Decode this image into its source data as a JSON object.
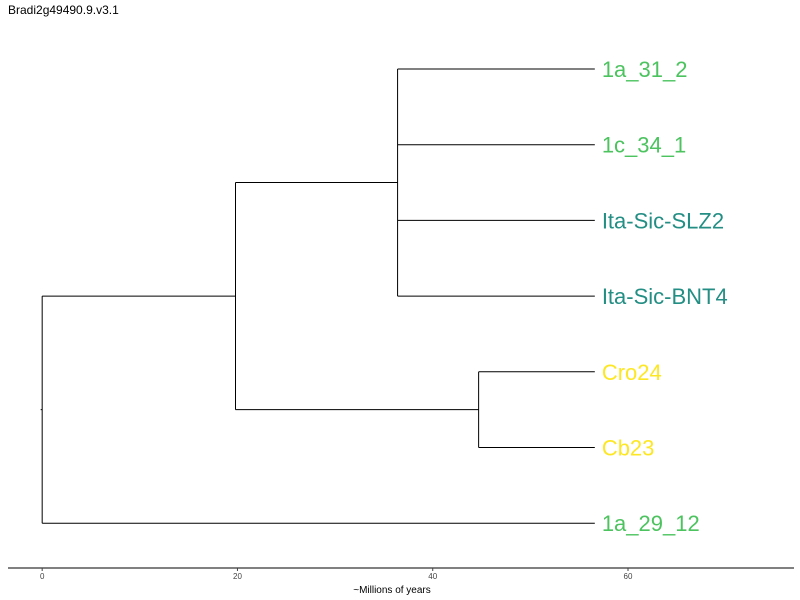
{
  "title": "Bradi2g49490.9.v3.1",
  "xlabel": "~Millions of years",
  "axis": {
    "xlim": [
      -3.5,
      77
    ],
    "ticks": [
      0,
      20,
      40,
      60
    ]
  },
  "tree": {
    "name": "root",
    "x": 0,
    "children": [
      {
        "name": "n1",
        "x": 19.8,
        "children": [
          {
            "name": "n2",
            "x": 36.4,
            "children": [
              {
                "name": "1a_31_2",
                "x": 56.6,
                "color": "#4cc35f"
              },
              {
                "name": "1c_34_1",
                "x": 56.6,
                "color": "#4cc35f"
              },
              {
                "name": "Ita-Sic-SLZ2",
                "x": 56.6,
                "color": "#238e84"
              },
              {
                "name": "Ita-Sic-BNT4",
                "x": 56.6,
                "color": "#238e84"
              }
            ]
          },
          {
            "name": "n3",
            "x": 44.7,
            "children": [
              {
                "name": "Cro24",
                "x": 56.6,
                "color": "#fde725"
              },
              {
                "name": "Cb23",
                "x": 56.6,
                "color": "#fde725"
              }
            ]
          }
        ]
      },
      {
        "name": "1a_29_12",
        "x": 56.6,
        "color": "#4cc35f"
      }
    ]
  }
}
